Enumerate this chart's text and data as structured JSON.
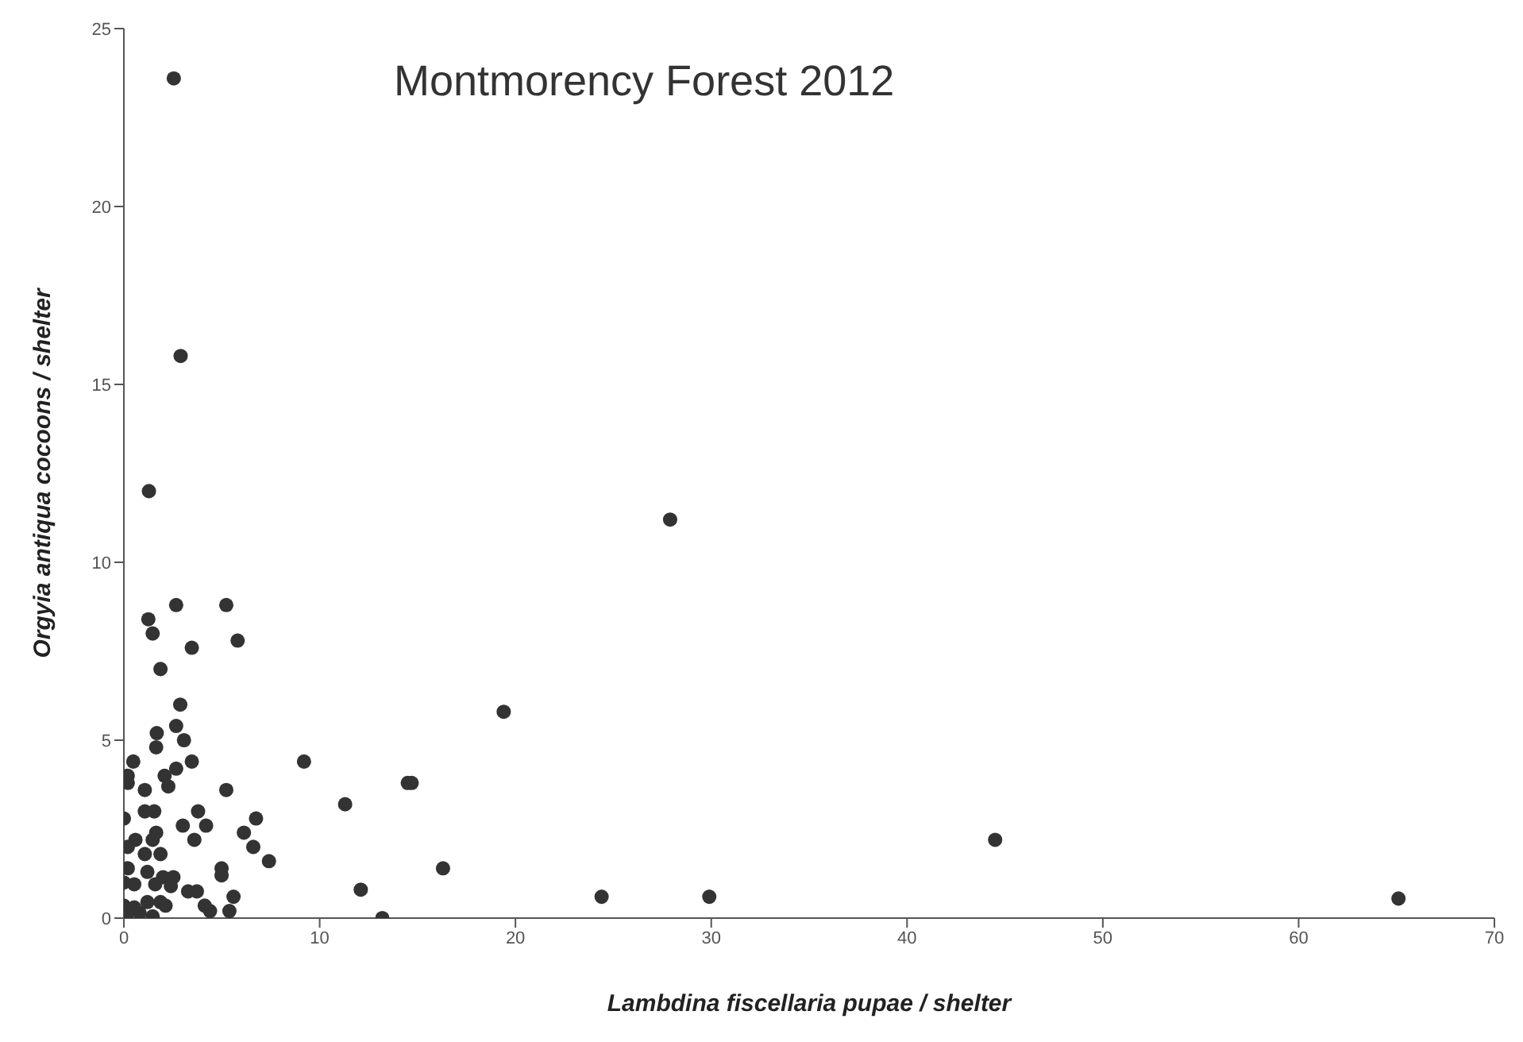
{
  "chart_data": {
    "type": "scatter",
    "title": "Montmorency Forest 2012",
    "xlabel": "Lambdina fiscellaria pupae / shelter",
    "ylabel": "Orgyia antiqua cocoons / shelter",
    "xlim": [
      0,
      70
    ],
    "xticks": [
      0,
      10,
      20,
      30,
      40,
      50,
      60,
      70
    ],
    "ylim": [
      0,
      25
    ],
    "yticks": [
      0,
      5,
      10,
      15,
      20,
      25
    ],
    "grid": false,
    "marker": "circle",
    "series": [
      {
        "color": "#333333",
        "x": [
          2.55,
          2.9,
          1.28,
          2.67,
          5.23,
          1.25,
          1.47,
          5.81,
          3.47,
          1.87,
          2.88,
          2.67,
          1.68,
          3.07,
          1.65,
          0.48,
          3.47,
          9.2,
          2.08,
          0.2,
          2.67,
          2.27,
          0.2,
          1.07,
          5.23,
          14.5,
          11.3,
          1.07,
          1.55,
          3.79,
          0,
          6.75,
          3.01,
          4.2,
          1.65,
          6.13,
          0.59,
          3.6,
          0.2,
          1.47,
          6.61,
          1.07,
          1.87,
          7.41,
          0.2,
          4.99,
          4.99,
          1.2,
          2.0,
          2.53,
          0,
          0.53,
          1.6,
          2.4,
          3.28,
          3.73,
          12.1,
          5.6,
          0,
          0.53,
          1.2,
          1.87,
          2.13,
          4.13,
          4.4,
          5.39,
          0.13,
          0.8,
          1.47,
          13.2,
          14.7,
          16.3,
          19.4,
          24.4,
          27.9,
          29.9,
          44.5,
          65.1
        ],
        "values": [
          23.6,
          15.8,
          12.0,
          8.8,
          8.8,
          8.4,
          8.0,
          7.8,
          7.6,
          7.0,
          6.0,
          5.4,
          5.2,
          5.0,
          4.8,
          4.4,
          4.4,
          4.4,
          4.0,
          4.0,
          4.2,
          3.7,
          3.8,
          3.6,
          3.6,
          3.8,
          3.2,
          3.0,
          3.0,
          3.0,
          2.8,
          2.8,
          2.6,
          2.6,
          2.4,
          2.4,
          2.2,
          2.2,
          2.0,
          2.2,
          2.0,
          1.8,
          1.8,
          1.6,
          1.4,
          1.4,
          1.2,
          1.3,
          1.15,
          1.15,
          1.0,
          0.95,
          0.95,
          0.9,
          0.75,
          0.75,
          0.8,
          0.6,
          0.35,
          0.3,
          0.45,
          0.45,
          0.35,
          0.35,
          0.2,
          0.2,
          0.05,
          0.15,
          0.05,
          0,
          3.8,
          1.4,
          5.8,
          0.6,
          11.2,
          0.6,
          2.2,
          0.55
        ]
      }
    ]
  }
}
